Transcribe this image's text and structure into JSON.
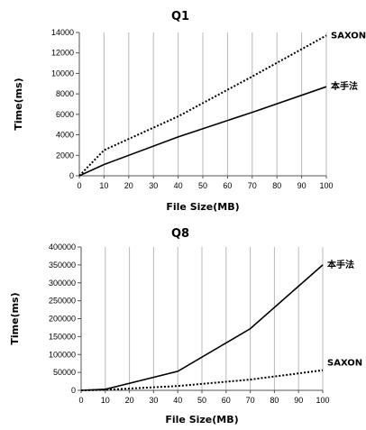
{
  "chart_data": [
    {
      "type": "line",
      "title": "Q1",
      "xlabel": "File Size(MB)",
      "ylabel": "Time(ms)",
      "xlim": [
        0,
        100
      ],
      "ylim": [
        0,
        14000
      ],
      "xticks": [
        "0",
        "10",
        "20",
        "30",
        "40",
        "50",
        "60",
        "70",
        "80",
        "90",
        "100"
      ],
      "yticks": [
        "0",
        "2000",
        "4000",
        "6000",
        "8000",
        "10000",
        "12000",
        "14000"
      ],
      "grid": "vertical",
      "series": [
        {
          "name": "SAXON",
          "style": "dotted",
          "x": [
            0,
            10,
            40,
            70,
            100
          ],
          "y": [
            0,
            2500,
            5800,
            9700,
            13700
          ]
        },
        {
          "name": "本手法",
          "style": "solid",
          "x": [
            0,
            10,
            40,
            70,
            100
          ],
          "y": [
            0,
            1100,
            3800,
            6200,
            8700
          ]
        }
      ]
    },
    {
      "type": "line",
      "title": "Q8",
      "xlabel": "File Size(MB)",
      "ylabel": "Time(ms)",
      "xlim": [
        0,
        100
      ],
      "ylim": [
        0,
        400000
      ],
      "xticks": [
        "0",
        "10",
        "20",
        "30",
        "40",
        "50",
        "60",
        "70",
        "80",
        "90",
        "100"
      ],
      "yticks": [
        "0",
        "50000",
        "100000",
        "150000",
        "200000",
        "250000",
        "300000",
        "350000",
        "400000"
      ],
      "grid": "vertical",
      "series": [
        {
          "name": "本手法",
          "style": "solid",
          "x": [
            0,
            10,
            40,
            70,
            100
          ],
          "y": [
            0,
            3000,
            53000,
            172000,
            350000
          ]
        },
        {
          "name": "SAXON",
          "style": "dotted",
          "x": [
            0,
            10,
            40,
            70,
            100
          ],
          "y": [
            0,
            1500,
            12000,
            30000,
            56000
          ]
        }
      ]
    }
  ]
}
